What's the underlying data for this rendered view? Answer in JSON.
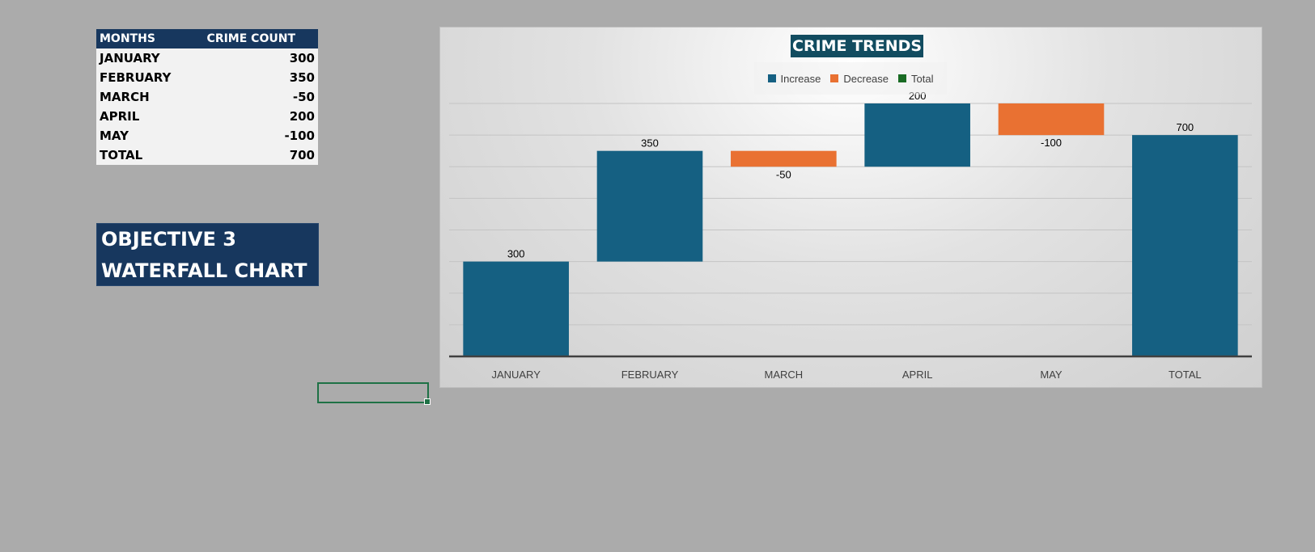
{
  "table": {
    "headers": [
      "MONTHS",
      "CRIME COUNT"
    ],
    "rows": [
      [
        "JANUARY",
        "300"
      ],
      [
        "FEBRUARY",
        "350"
      ],
      [
        "MARCH",
        "-50"
      ],
      [
        "APRIL",
        "200"
      ],
      [
        "MAY",
        "-100"
      ],
      [
        "TOTAL",
        "700"
      ]
    ]
  },
  "objective": {
    "line1": "OBJECTIVE 3",
    "line2": "WATERFALL CHART"
  },
  "chart_data": {
    "type": "bar",
    "subtype": "waterfall",
    "title": "CRIME TRENDS",
    "categories": [
      "JANUARY",
      "FEBRUARY",
      "MARCH",
      "APRIL",
      "MAY",
      "TOTAL"
    ],
    "values": [
      300,
      350,
      -50,
      200,
      -100,
      700
    ],
    "kinds": [
      "increase",
      "increase",
      "decrease",
      "increase",
      "decrease",
      "total"
    ],
    "data_labels": [
      "300",
      "350",
      "-50",
      "200",
      "-100",
      "700"
    ],
    "legend": {
      "placement": "top",
      "entries": [
        {
          "label": "Increase",
          "color": "#156082"
        },
        {
          "label": "Decrease",
          "color": "#e97132"
        },
        {
          "label": "Total",
          "color": "#196b24"
        }
      ]
    },
    "ylim": [
      0,
      800
    ],
    "grid": true,
    "colors": {
      "increase": "#156082",
      "decrease": "#e97132",
      "total_bar": "#156082"
    }
  }
}
